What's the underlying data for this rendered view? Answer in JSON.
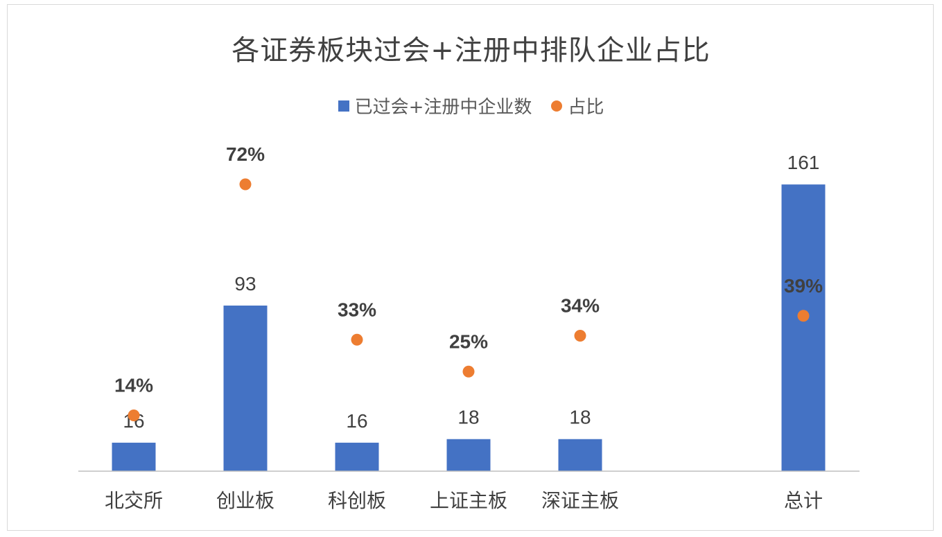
{
  "chart_data": {
    "type": "bar",
    "title": "各证券板块过会+注册中排队企业占比",
    "categories": [
      "北交所",
      "创业板",
      "科创板",
      "上证主板",
      "深证主板",
      "总计"
    ],
    "series": [
      {
        "name": "已过会+注册中企业数",
        "kind": "bar",
        "values": [
          16,
          93,
          16,
          18,
          18,
          161
        ],
        "labels": [
          "16",
          "93",
          "16",
          "18",
          "18",
          "161"
        ],
        "color": "#4472C4"
      },
      {
        "name": "占比",
        "kind": "scatter",
        "values": [
          0.14,
          0.72,
          0.33,
          0.25,
          0.34,
          0.39
        ],
        "labels": [
          "14%",
          "72%",
          "33%",
          "25%",
          "34%",
          "39%"
        ],
        "color": "#ED7D31"
      }
    ],
    "legend_position": "top",
    "grid": false
  }
}
